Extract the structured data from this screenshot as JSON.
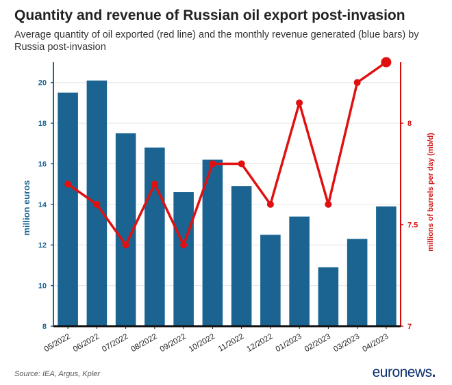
{
  "title": "Quantity and revenue of Russian oil export post-invasion",
  "subtitle": "Average quantity of oil exported (red line) and the monthly revenue generated (blue bars) by Russia post-invasion",
  "source": "Source: IEA, Argus, Kpler",
  "brand": {
    "name": "euronews",
    "dot": "."
  },
  "colors": {
    "bar": "#1b6491",
    "line": "#e01010",
    "left_axis": "#1b6491",
    "right_axis": "#d10d0d"
  },
  "chart_data": {
    "type": "bar",
    "categories": [
      "05/2022",
      "06/2022",
      "07/2022",
      "08/2022",
      "09/2022",
      "10/2022",
      "11/2022",
      "12/2022",
      "01/2023",
      "02/2023",
      "03/2023",
      "04/2023"
    ],
    "series": [
      {
        "name": "Monthly revenue (million euros)",
        "type": "bar",
        "axis": "left",
        "values": [
          19.5,
          20.1,
          17.5,
          16.8,
          14.6,
          16.2,
          14.9,
          12.5,
          13.4,
          10.9,
          12.3,
          13.9
        ]
      },
      {
        "name": "Average quantity exported (mb/d)",
        "type": "line",
        "axis": "right",
        "values": [
          7.7,
          7.6,
          7.4,
          7.7,
          7.4,
          7.8,
          7.8,
          7.6,
          8.1,
          7.6,
          8.2,
          8.3
        ]
      }
    ],
    "ylabel": "million euros",
    "ylim": [
      8,
      21
    ],
    "yticks": [
      "8",
      "10",
      "12",
      "14",
      "16",
      "18",
      "20"
    ],
    "y2label": "millions of barrels per day (mb/d)",
    "y2lim": [
      7,
      8.3
    ],
    "y2ticks": [
      "7",
      "7.5",
      "8"
    ]
  }
}
